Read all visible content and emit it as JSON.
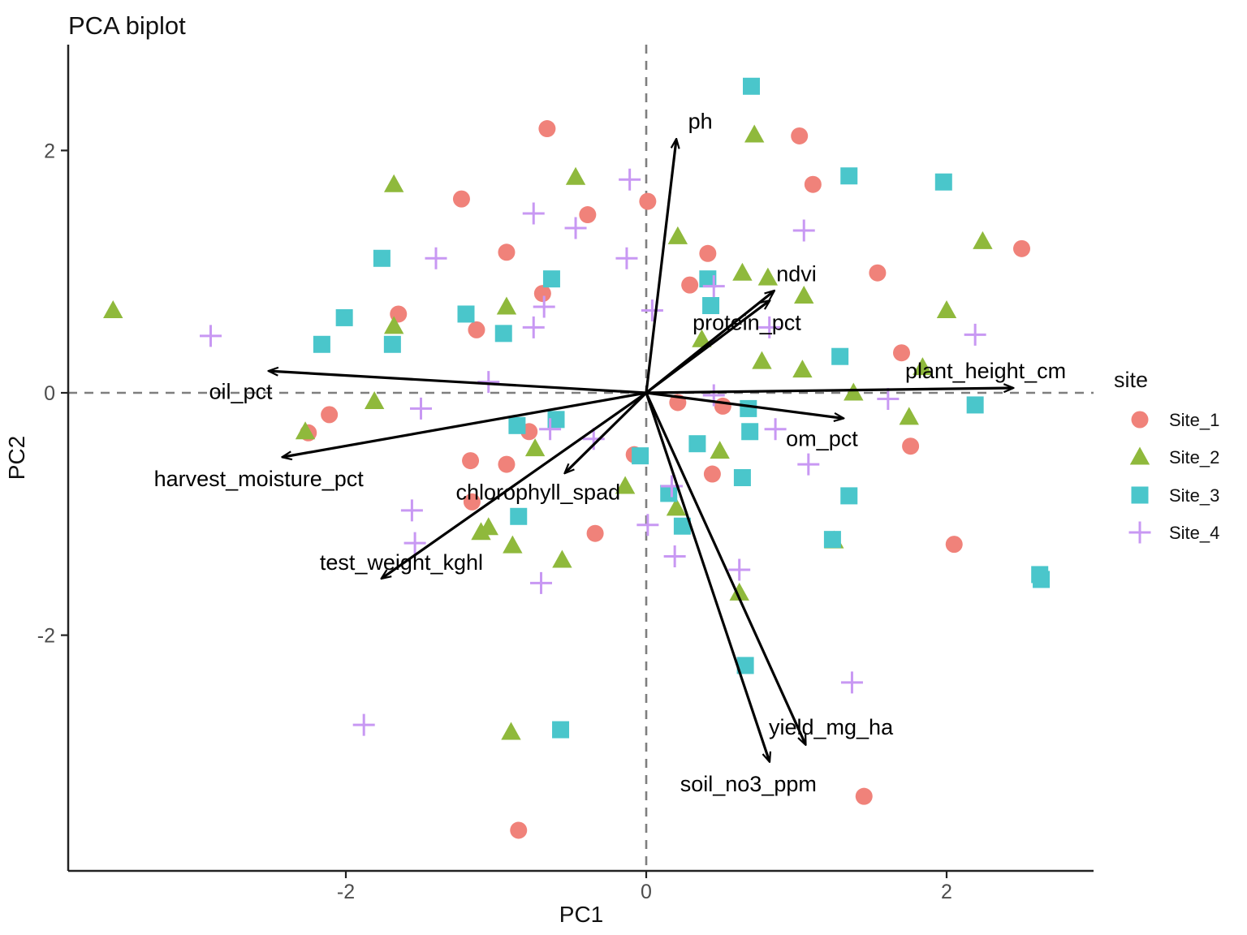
{
  "chart_data": {
    "type": "scatter",
    "subtype": "pca-biplot",
    "title": "PCA biplot",
    "xlabel": "PC1",
    "ylabel": "PC2",
    "xlim": [
      -3.85,
      2.98
    ],
    "ylim": [
      -3.94,
      2.87
    ],
    "x_ticks": [
      -2,
      0,
      2
    ],
    "y_ticks": [
      -2,
      0,
      2
    ],
    "grid": false,
    "zero_lines": {
      "style": "dashed",
      "color": "#7f7f7f"
    },
    "axis_color": "#222222",
    "arrow_color": "#000000",
    "legend": {
      "title": "site",
      "position": "right",
      "entries": [
        {
          "label": "Site_1",
          "shape": "circle",
          "color": "#F0827A"
        },
        {
          "label": "Site_2",
          "shape": "triangle",
          "color": "#8FB93C"
        },
        {
          "label": "Site_3",
          "shape": "square",
          "color": "#4AC6CB"
        },
        {
          "label": "Site_4",
          "shape": "plus",
          "color": "#C898F3"
        }
      ]
    },
    "series": [
      {
        "name": "Site_1",
        "shape": "circle",
        "color": "#F0827A",
        "points": [
          [
            -1.23,
            1.6
          ],
          [
            -0.66,
            2.18
          ],
          [
            1.02,
            2.12
          ],
          [
            1.11,
            1.72
          ],
          [
            0.01,
            1.58
          ],
          [
            -0.39,
            1.47
          ],
          [
            -0.93,
            1.16
          ],
          [
            0.41,
            1.15
          ],
          [
            0.29,
            0.89
          ],
          [
            -0.69,
            0.82
          ],
          [
            1.54,
            0.99
          ],
          [
            -1.13,
            0.52
          ],
          [
            -1.65,
            0.65
          ],
          [
            2.5,
            1.19
          ],
          [
            1.7,
            0.33
          ],
          [
            -2.11,
            -0.18
          ],
          [
            -2.25,
            -0.33
          ],
          [
            -1.17,
            -0.56
          ],
          [
            -1.16,
            -0.9
          ],
          [
            -0.78,
            -0.32
          ],
          [
            0.21,
            -0.08
          ],
          [
            0.51,
            -0.11
          ],
          [
            -0.08,
            -0.51
          ],
          [
            0.44,
            -0.67
          ],
          [
            -0.34,
            -1.16
          ],
          [
            -0.93,
            -0.59
          ],
          [
            1.76,
            -0.44
          ],
          [
            2.05,
            -1.25
          ],
          [
            -0.85,
            -3.61
          ],
          [
            1.45,
            -3.33
          ]
        ]
      },
      {
        "name": "Site_2",
        "shape": "triangle",
        "color": "#8FB93C",
        "points": [
          [
            -1.68,
            1.72
          ],
          [
            0.72,
            2.13
          ],
          [
            -0.47,
            1.78
          ],
          [
            -3.55,
            0.68
          ],
          [
            -1.68,
            0.55
          ],
          [
            0.21,
            1.29
          ],
          [
            0.64,
            0.99
          ],
          [
            0.81,
            0.95
          ],
          [
            -0.93,
            0.71
          ],
          [
            1.05,
            0.8
          ],
          [
            0.37,
            0.44
          ],
          [
            0.77,
            0.26
          ],
          [
            1.04,
            0.19
          ],
          [
            2.24,
            1.25
          ],
          [
            2.0,
            0.68
          ],
          [
            1.84,
            0.21
          ],
          [
            -1.81,
            -0.07
          ],
          [
            -2.27,
            -0.32
          ],
          [
            1.38,
            0.0
          ],
          [
            -0.74,
            -0.46
          ],
          [
            0.49,
            -0.48
          ],
          [
            -0.14,
            -0.77
          ],
          [
            0.2,
            -0.95
          ],
          [
            -1.05,
            -1.11
          ],
          [
            -0.89,
            -1.26
          ],
          [
            -0.56,
            -1.38
          ],
          [
            0.62,
            -1.65
          ],
          [
            1.25,
            -1.22
          ],
          [
            1.75,
            -0.2
          ],
          [
            -0.9,
            -2.8
          ],
          [
            -1.1,
            -1.15
          ]
        ]
      },
      {
        "name": "Site_3",
        "shape": "square",
        "color": "#4AC6CB",
        "points": [
          [
            0.7,
            2.53
          ],
          [
            -1.76,
            1.11
          ],
          [
            1.35,
            1.79
          ],
          [
            1.98,
            1.74
          ],
          [
            -0.63,
            0.94
          ],
          [
            -2.01,
            0.62
          ],
          [
            -2.16,
            0.4
          ],
          [
            -1.69,
            0.4
          ],
          [
            0.41,
            0.94
          ],
          [
            0.43,
            0.72
          ],
          [
            -0.95,
            0.49
          ],
          [
            -1.2,
            0.65
          ],
          [
            1.29,
            0.3
          ],
          [
            -0.86,
            -0.27
          ],
          [
            -0.6,
            -0.22
          ],
          [
            0.68,
            -0.13
          ],
          [
            0.69,
            -0.32
          ],
          [
            0.34,
            -0.42
          ],
          [
            -0.04,
            -0.52
          ],
          [
            0.64,
            -0.7
          ],
          [
            0.15,
            -0.83
          ],
          [
            0.24,
            -1.1
          ],
          [
            -0.85,
            -1.02
          ],
          [
            1.35,
            -0.85
          ],
          [
            2.19,
            -0.1
          ],
          [
            1.24,
            -1.21
          ],
          [
            0.66,
            -2.25
          ],
          [
            2.62,
            -1.5
          ],
          [
            2.63,
            -1.54
          ],
          [
            -0.57,
            -2.78
          ]
        ]
      },
      {
        "name": "Site_4",
        "shape": "plus",
        "color": "#C898F3",
        "points": [
          [
            -1.4,
            1.11
          ],
          [
            -0.11,
            1.76
          ],
          [
            -0.75,
            1.48
          ],
          [
            -0.47,
            1.36
          ],
          [
            1.05,
            1.34
          ],
          [
            -0.13,
            1.11
          ],
          [
            -2.9,
            0.47
          ],
          [
            -0.68,
            0.71
          ],
          [
            0.45,
            0.88
          ],
          [
            0.04,
            0.68
          ],
          [
            -0.75,
            0.54
          ],
          [
            2.19,
            0.48
          ],
          [
            0.82,
            0.54
          ],
          [
            -1.05,
            0.09
          ],
          [
            -1.5,
            -0.13
          ],
          [
            0.45,
            -0.02
          ],
          [
            1.61,
            -0.05
          ],
          [
            -0.64,
            -0.3
          ],
          [
            -0.35,
            -0.38
          ],
          [
            0.86,
            -0.3
          ],
          [
            1.08,
            -0.59
          ],
          [
            0.17,
            -0.77
          ],
          [
            -1.56,
            -0.97
          ],
          [
            -1.54,
            -1.24
          ],
          [
            0.01,
            -1.09
          ],
          [
            0.19,
            -1.35
          ],
          [
            -0.7,
            -1.57
          ],
          [
            0.62,
            -1.46
          ],
          [
            1.37,
            -2.39
          ],
          [
            -1.88,
            -2.74
          ]
        ]
      }
    ],
    "loadings": [
      {
        "name": "ph",
        "x": 0.2,
        "y": 2.09,
        "label_x": 0.36,
        "label_y": 2.24
      },
      {
        "name": "ndvi",
        "x": 0.85,
        "y": 0.84,
        "label_x": 1.0,
        "label_y": 0.98
      },
      {
        "name": "protein_pct",
        "x": 0.82,
        "y": 0.76,
        "label_x": 0.67,
        "label_y": 0.58
      },
      {
        "name": "plant_height_cm",
        "x": 2.44,
        "y": 0.04,
        "label_x": 2.26,
        "label_y": 0.18
      },
      {
        "name": "om_pct",
        "x": 1.31,
        "y": -0.21,
        "label_x": 1.17,
        "label_y": -0.38
      },
      {
        "name": "oil_pct",
        "x": -2.51,
        "y": 0.18,
        "label_x": -2.7,
        "label_y": 0.01
      },
      {
        "name": "harvest_moisture_pct",
        "x": -2.42,
        "y": -0.53,
        "label_x": -2.58,
        "label_y": -0.71
      },
      {
        "name": "chlorophyll_spad",
        "x": -0.54,
        "y": -0.66,
        "label_x": -0.72,
        "label_y": -0.82
      },
      {
        "name": "test_weight_kghl",
        "x": -1.76,
        "y": -1.53,
        "label_x": -1.63,
        "label_y": -1.4
      },
      {
        "name": "yield_mg_ha",
        "x": 1.06,
        "y": -2.9,
        "label_x": 1.23,
        "label_y": -2.76
      },
      {
        "name": "soil_no3_ppm",
        "x": 0.82,
        "y": -3.04,
        "label_x": 0.68,
        "label_y": -3.23
      }
    ]
  }
}
